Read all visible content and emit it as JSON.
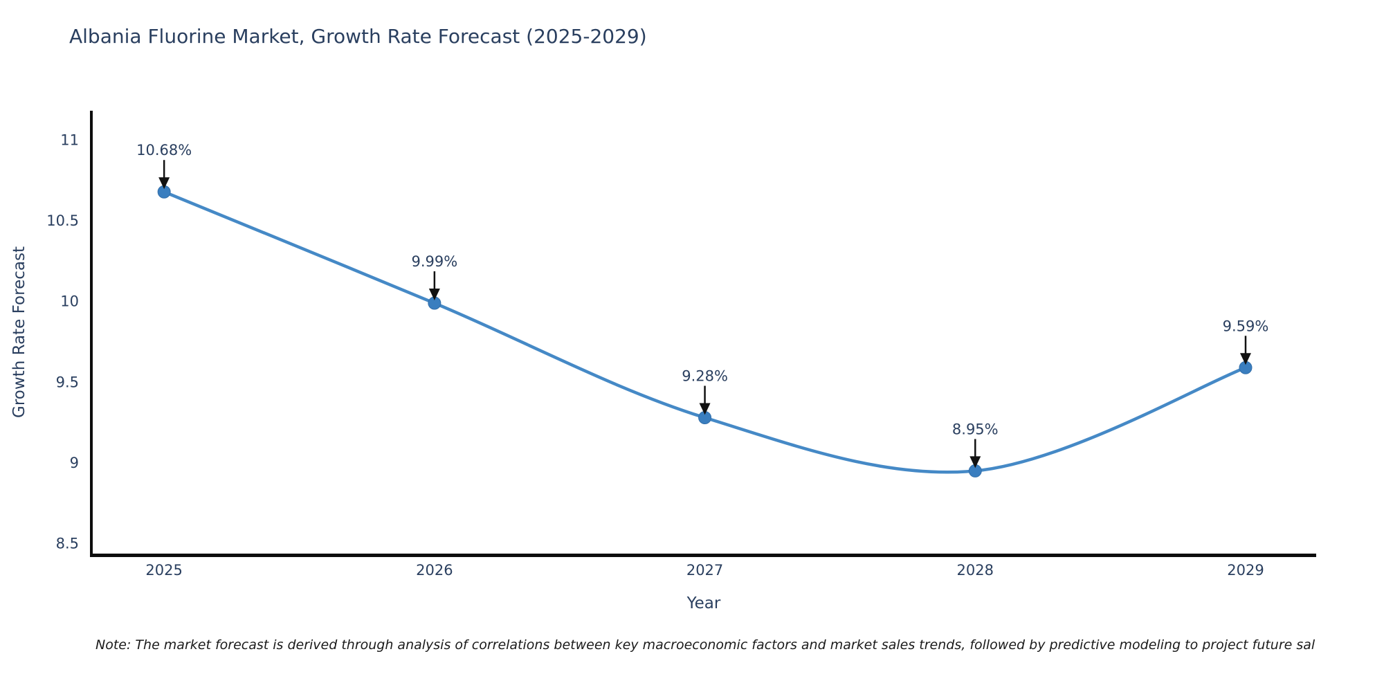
{
  "title": "Albania Fluorine Market, Growth Rate Forecast (2025-2029)",
  "note": "Note: The market forecast is derived through analysis of correlations between key macroeconomic factors and market sales trends, followed by predictive modeling to project future sal",
  "chart_data": {
    "type": "line",
    "title": "Albania Fluorine Market, Growth Rate Forecast (2025-2029)",
    "xlabel": "Year",
    "ylabel": "Growth Rate Forecast",
    "x": [
      2025,
      2026,
      2027,
      2028,
      2029
    ],
    "values": [
      10.68,
      9.99,
      9.28,
      8.95,
      9.59
    ],
    "point_labels": [
      "10.68%",
      "9.99%",
      "9.28%",
      "8.95%",
      "9.59%"
    ],
    "xticks": [
      2025,
      2026,
      2027,
      2028,
      2029
    ],
    "xtick_labels": [
      "2025",
      "2026",
      "2027",
      "2028",
      "2029"
    ],
    "yticks": [
      8.5,
      9,
      9.5,
      10,
      10.5,
      11
    ],
    "ytick_labels": [
      "8.5",
      "9",
      "9.5",
      "10",
      "10.5",
      "11"
    ],
    "xlim": [
      2024.736,
      2029.256
    ],
    "ylim": [
      8.437,
      11.183
    ],
    "grid": false,
    "legend": false,
    "line_shape": "spline",
    "annotation_style": "label-above-with-down-arrow",
    "colors": {
      "line": "#4589c6",
      "marker": "#3a7ebf",
      "marker_edge": "#326ea9",
      "axis": "#0d0d0d",
      "text": "#2a3f5f",
      "arrow": "#111111",
      "background": "#ffffff"
    }
  }
}
